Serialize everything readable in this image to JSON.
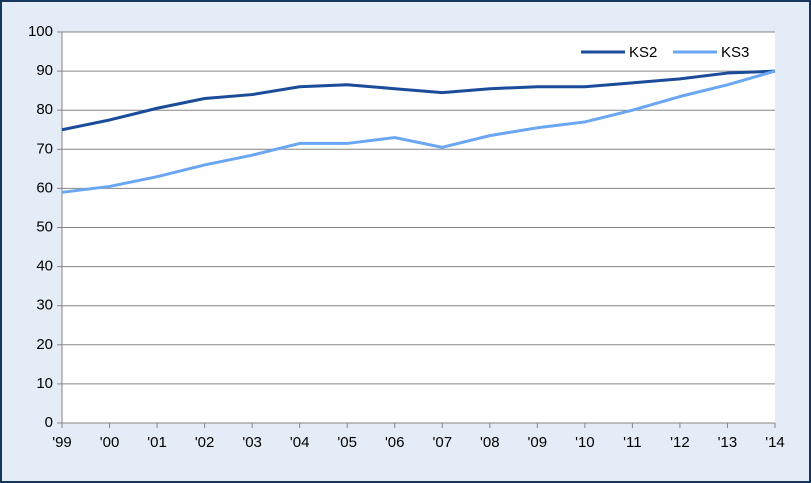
{
  "chart_data": {
    "type": "line",
    "categories": [
      "'99",
      "'00",
      "'01",
      "'02",
      "'03",
      "'04",
      "'05",
      "'06",
      "'07",
      "'08",
      "'09",
      "'10",
      "'11",
      "'12",
      "'13",
      "'14"
    ],
    "series": [
      {
        "name": "KS2",
        "color": "#1a4c9a",
        "values": [
          75,
          77.5,
          80.5,
          83,
          84,
          86,
          86.5,
          85.5,
          84.5,
          85.5,
          86,
          86,
          87,
          88,
          89.5,
          90
        ]
      },
      {
        "name": "KS3",
        "color": "#6aa6f2",
        "values": [
          59,
          60.5,
          63,
          66,
          68.5,
          71.5,
          71.5,
          73,
          70.5,
          73.5,
          75.5,
          77,
          80,
          83.5,
          86.5,
          90
        ]
      }
    ],
    "ylim": [
      0,
      100
    ],
    "yticks": [
      0,
      10,
      20,
      30,
      40,
      50,
      60,
      70,
      80,
      90,
      100
    ],
    "grid": true,
    "legend": "top-right"
  }
}
